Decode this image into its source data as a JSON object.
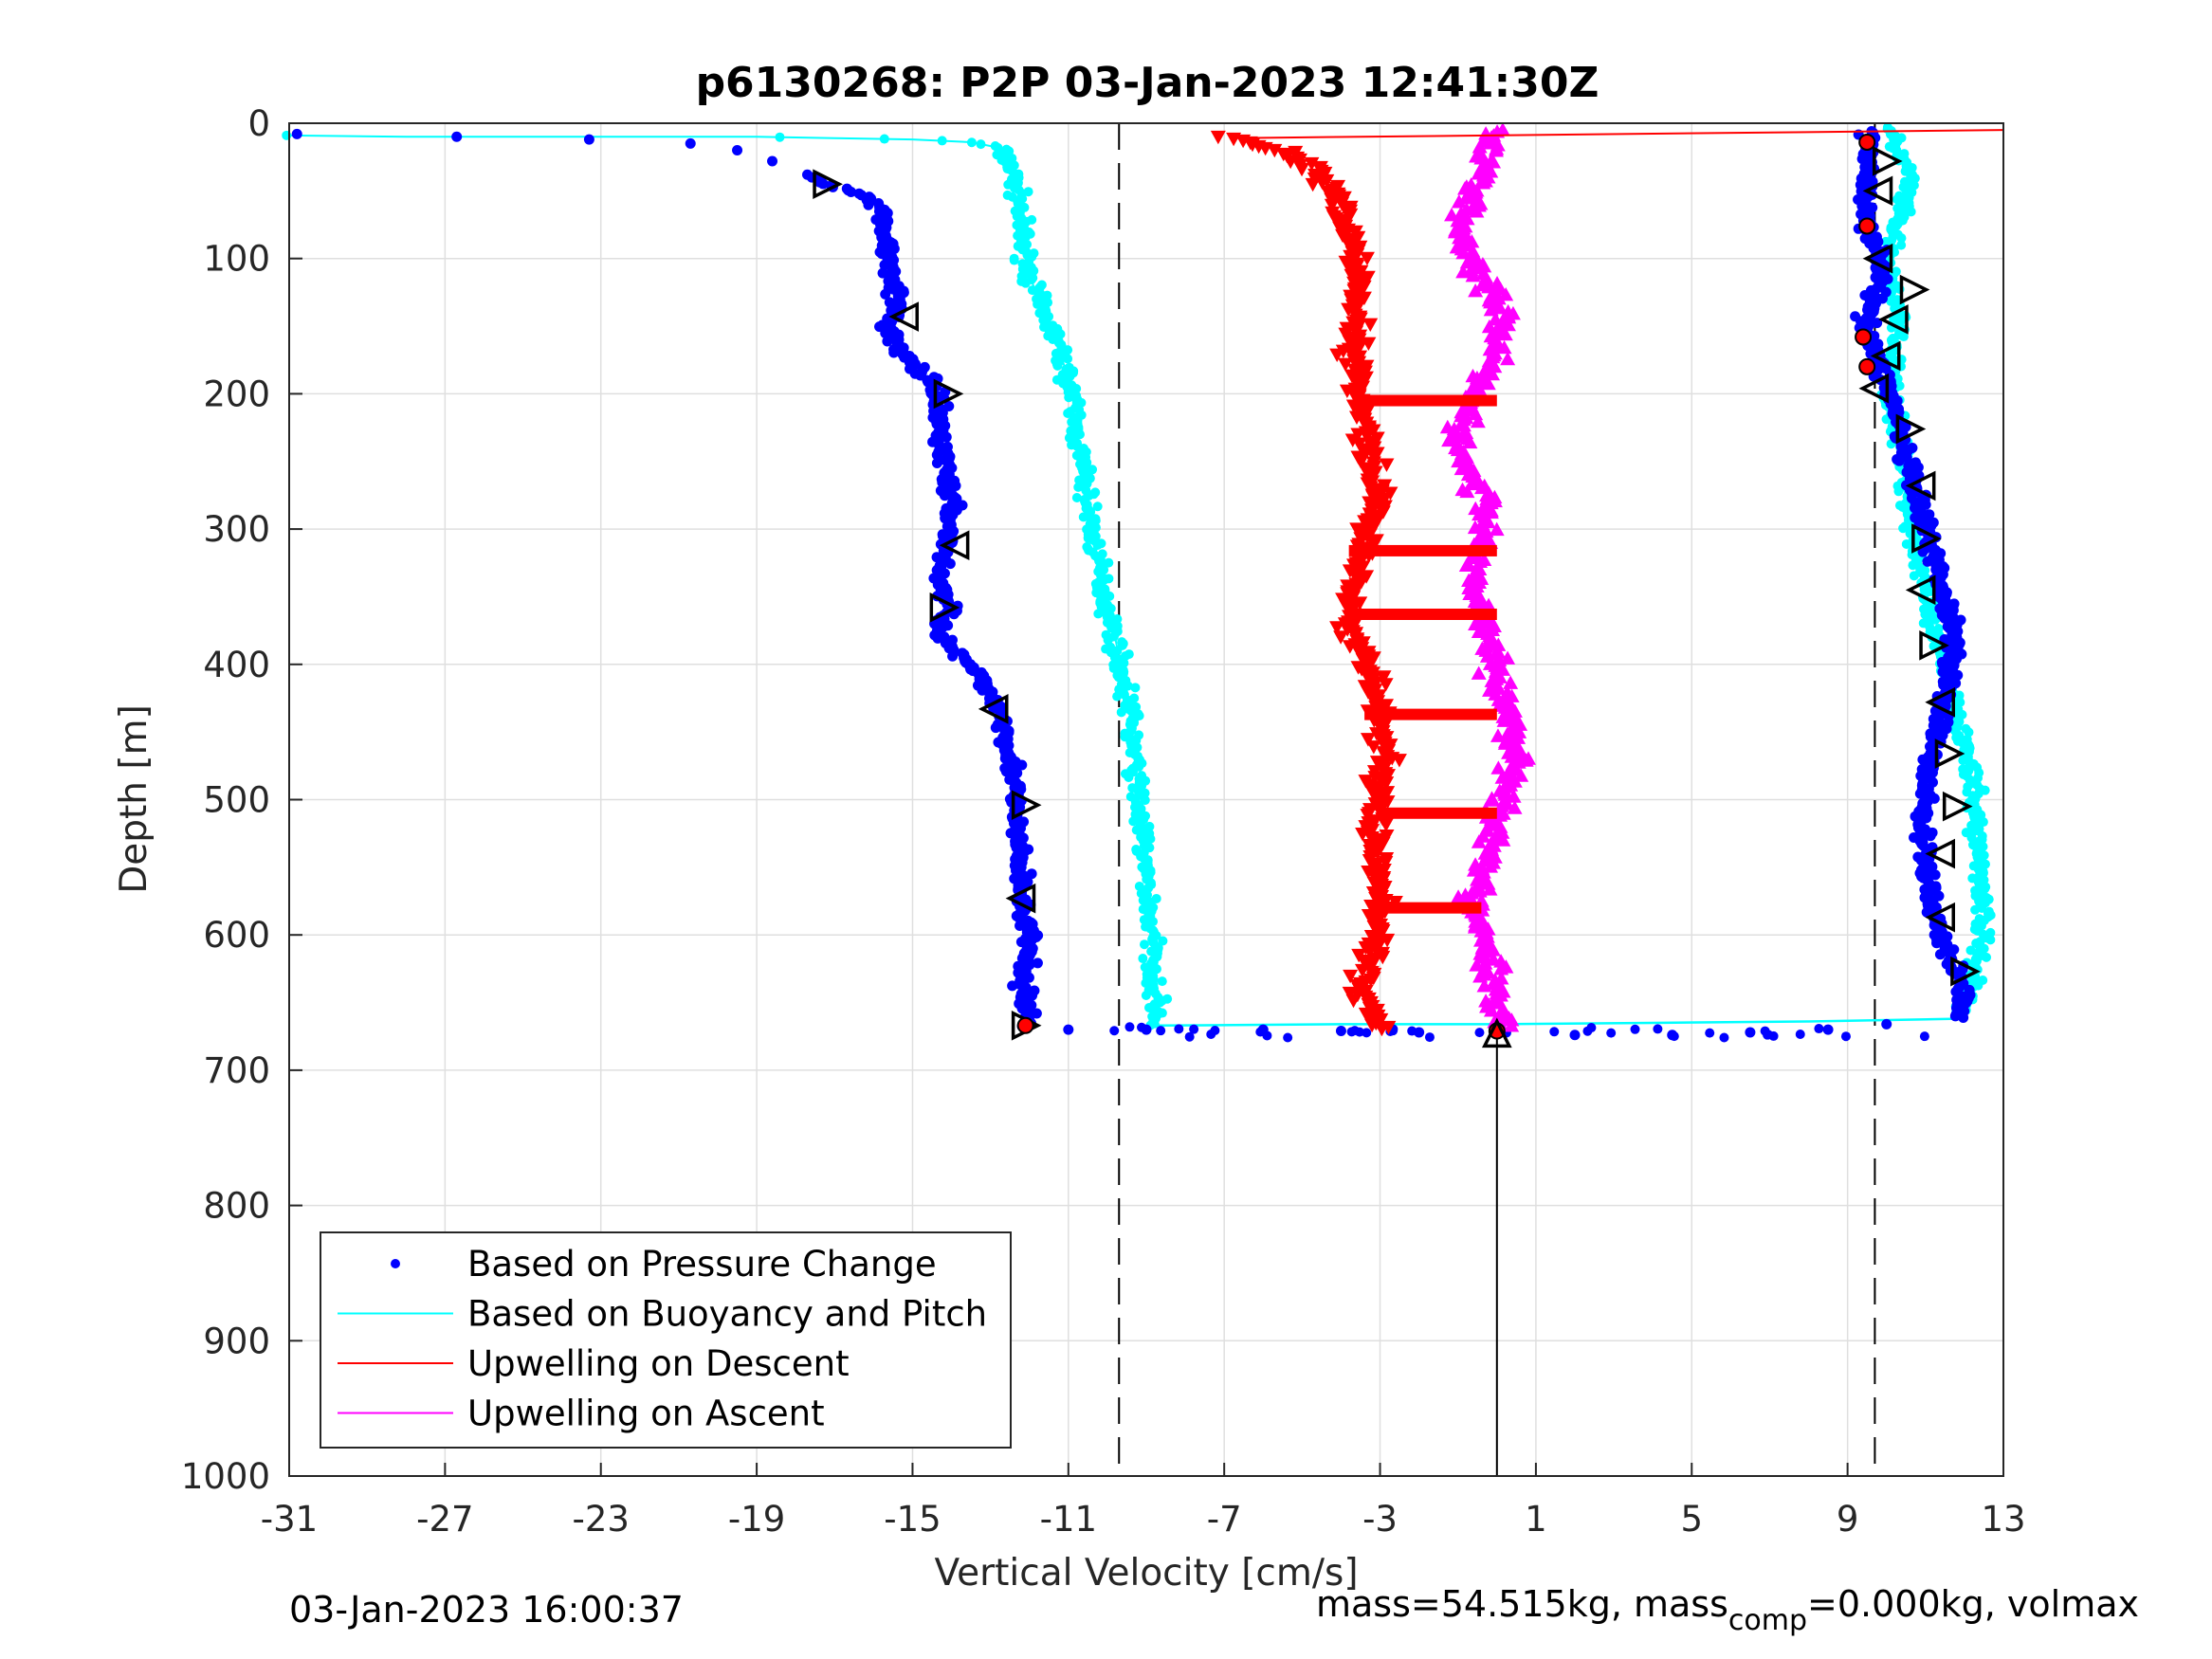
{
  "chart_data": {
    "type": "scatter",
    "title": "p6130268: P2P 03-Jan-2023 12:41:30Z",
    "xlabel": "Vertical Velocity [cm/s]",
    "ylabel": "Depth [m]",
    "xlim": [
      -31,
      13
    ],
    "ylim": [
      0,
      1000
    ],
    "y_reversed": true,
    "grid": true,
    "legend_position": "bottom-left",
    "xticks": [
      -31,
      -27,
      -23,
      -19,
      -15,
      -11,
      -7,
      -3,
      1,
      5,
      9,
      13
    ],
    "yticks": [
      0,
      100,
      200,
      300,
      400,
      500,
      600,
      700,
      800,
      900,
      1000
    ],
    "xtick_labels": [
      "-31",
      "-27",
      "-23",
      "-19",
      "-15",
      "-11",
      "-7",
      "-3",
      "1",
      "5",
      "9",
      "13"
    ],
    "ytick_labels": [
      "0",
      "100",
      "200",
      "300",
      "400",
      "500",
      "600",
      "700",
      "800",
      "900",
      "1000"
    ],
    "reference_lines": {
      "dashed_x": [
        -9.7,
        9.7
      ],
      "solid_x": 0
    },
    "series": [
      {
        "name": "Based on Pressure Change",
        "color": "#0000ff",
        "marker": "dot",
        "descent": {
          "x": [
            -30.8,
            -26.7,
            -23.3,
            -20.7,
            -19.5,
            -18.6,
            -17.7,
            -17.2,
            -16.4,
            -15.9,
            -15.7,
            -15.6,
            -15.4,
            -15.5,
            -15.6,
            -15.5,
            -15.3,
            -14.7,
            -14.4,
            -14.3,
            -14.1,
            -14.0,
            -14.1,
            -14.3,
            -14.2,
            -14.0,
            -14.2,
            -14.3,
            -13.9,
            -13.3,
            -12.8,
            -12.6,
            -12.4,
            -12.4,
            -12.3,
            -12.2,
            -12.2,
            -12.0,
            -12.1,
            -12.2,
            -12.0,
            -12.1
          ],
          "y": [
            8,
            10,
            12,
            15,
            20,
            28,
            38,
            45,
            50,
            60,
            80,
            100,
            120,
            140,
            150,
            160,
            170,
            185,
            200,
            230,
            260,
            290,
            310,
            330,
            350,
            360,
            370,
            380,
            390,
            410,
            430,
            450,
            480,
            500,
            530,
            560,
            580,
            600,
            620,
            640,
            660,
            668
          ]
        },
        "ascent": {
          "x": [
            11.9,
            12.0,
            11.5,
            11.2,
            11.0,
            10.9,
            11.0,
            11.1,
            11.4,
            11.6,
            11.8,
            11.6,
            11.4,
            11.2,
            11.0,
            10.8,
            10.6,
            10.4,
            10.3,
            10.1,
            9.9,
            9.7,
            9.6,
            9.5,
            9.8,
            9.9,
            9.6,
            9.4,
            9.5,
            9.6,
            9.5
          ],
          "y": [
            662,
            640,
            610,
            580,
            550,
            520,
            500,
            470,
            440,
            410,
            380,
            360,
            340,
            320,
            300,
            280,
            260,
            240,
            220,
            200,
            185,
            170,
            160,
            140,
            120,
            100,
            80,
            60,
            40,
            20,
            6
          ]
        },
        "turnaround": {
          "x": [
            -11.0,
            -9.0,
            -6.0,
            -4.0,
            -2.0,
            0.0,
            2.0,
            4.5,
            6.5,
            8.5,
            10.0
          ],
          "y": [
            670,
            670,
            670,
            671,
            672,
            673,
            674,
            674,
            672,
            670,
            666
          ]
        }
      },
      {
        "name": "Based on Buoyancy and Pitch",
        "color": "#00ffff",
        "marker": "line",
        "descent": {
          "x": [
            -31.0,
            -28.0,
            -25.0,
            -22.0,
            -19.0,
            -17.0,
            -15.0,
            -13.5,
            -12.8,
            -12.5,
            -12.3,
            -12.2,
            -12.1,
            -11.8,
            -11.3,
            -10.9,
            -10.8,
            -10.6,
            -10.4,
            -10.2,
            -10.0,
            -9.8,
            -9.6,
            -9.4,
            -9.3,
            -9.2,
            -9.1,
            -9.0,
            -8.9,
            -8.8,
            -8.8,
            -8.7,
            -8.8
          ],
          "y": [
            9,
            10,
            10,
            10,
            10,
            11,
            12,
            14,
            18,
            30,
            50,
            80,
            100,
            130,
            160,
            200,
            230,
            260,
            300,
            330,
            360,
            380,
            410,
            440,
            470,
            500,
            530,
            560,
            590,
            620,
            640,
            660,
            667
          ]
        },
        "ascent": {
          "x": [
            11.8,
            12.2,
            12.4,
            12.5,
            12.4,
            12.3,
            12.2,
            12.0,
            11.8,
            11.5,
            11.2,
            11.0,
            10.8,
            10.6,
            10.5,
            10.3,
            10.1,
            10.2,
            10.3,
            10.1,
            10.0,
            10.2,
            10.4,
            10.6,
            10.3,
            10.0
          ],
          "y": [
            660,
            640,
            610,
            580,
            550,
            520,
            490,
            460,
            430,
            400,
            380,
            350,
            320,
            290,
            260,
            230,
            200,
            170,
            140,
            120,
            100,
            80,
            60,
            40,
            20,
            3
          ]
        },
        "turnaround": {
          "x": [
            -8.7,
            -4.0,
            0.0,
            4.0,
            8.0,
            11.8
          ],
          "y": [
            667,
            666,
            666,
            665,
            664,
            662
          ]
        }
      },
      {
        "name": "Upwelling on Descent",
        "color": "#ff0000",
        "marker": "triangle-down",
        "x": [
          -7.0,
          -5.5,
          -4.5,
          -4.0,
          -3.8,
          -3.6,
          -3.5,
          -3.6,
          -3.7,
          -3.5,
          -3.4,
          -3.2,
          -3.0,
          -3.3,
          -3.5,
          -3.6,
          -3.8,
          -3.9,
          -3.4,
          -3.2,
          -3.0,
          -2.9,
          -3.1,
          -3.2,
          -3.0,
          -2.9,
          -3.1,
          -3.3,
          -3.5,
          -3.2,
          -3.0
        ],
        "y": [
          10,
          20,
          40,
          60,
          80,
          100,
          130,
          150,
          170,
          200,
          220,
          250,
          280,
          300,
          320,
          340,
          360,
          370,
          390,
          410,
          440,
          470,
          500,
          530,
          560,
          580,
          600,
          620,
          640,
          655,
          670
        ],
        "bands": [
          {
            "y": 205,
            "x_from": -3.5,
            "x_to": 0.0
          },
          {
            "y": 316,
            "x_from": -3.8,
            "x_to": 0.0
          },
          {
            "y": 363,
            "x_from": -3.9,
            "x_to": 0.0
          },
          {
            "y": 437,
            "x_from": -3.4,
            "x_to": 0.0
          },
          {
            "y": 510,
            "x_from": -3.1,
            "x_to": 0.0
          },
          {
            "y": 580,
            "x_from": -3.2,
            "x_to": -0.4
          }
        ],
        "surface_line": {
          "x_from": -6.8,
          "x_to": 13.0,
          "y_from": 11,
          "y_to": 5
        }
      },
      {
        "name": "Upwelling on Ascent",
        "color": "#ff00ff",
        "marker": "triangle-up",
        "x": [
          0.2,
          0.0,
          -0.1,
          -0.3,
          -0.5,
          -0.6,
          -0.4,
          -0.2,
          0.0,
          0.3,
          0.5,
          0.4,
          0.2,
          0.0,
          -0.1,
          -0.3,
          -0.5,
          -0.6,
          -0.4,
          -0.2,
          -0.5,
          -0.8,
          -1.0,
          -0.5,
          0.0,
          0.2,
          -0.5,
          -1.0,
          -0.6,
          -0.3,
          0.0
        ],
        "y": [
          668,
          650,
          630,
          610,
          590,
          570,
          550,
          530,
          510,
          490,
          470,
          450,
          430,
          410,
          390,
          370,
          350,
          330,
          310,
          290,
          270,
          250,
          230,
          200,
          170,
          140,
          110,
          80,
          50,
          30,
          5
        ]
      }
    ],
    "markers": {
      "descent_triangles": [
        {
          "x": -17.2,
          "y": 45,
          "dir": "right"
        },
        {
          "x": -15.2,
          "y": 143,
          "dir": "left"
        },
        {
          "x": -14.1,
          "y": 200,
          "dir": "right"
        },
        {
          "x": -13.9,
          "y": 312,
          "dir": "left"
        },
        {
          "x": -14.2,
          "y": 358,
          "dir": "right"
        },
        {
          "x": -12.9,
          "y": 433,
          "dir": "left"
        },
        {
          "x": -12.1,
          "y": 504,
          "dir": "right"
        },
        {
          "x": -12.2,
          "y": 573,
          "dir": "left"
        },
        {
          "x": -12.1,
          "y": 667,
          "dir": "right"
        }
      ],
      "ascent_triangles": [
        {
          "x": 10.0,
          "y": 28,
          "dir": "right"
        },
        {
          "x": 9.8,
          "y": 50,
          "dir": "left"
        },
        {
          "x": 9.8,
          "y": 100,
          "dir": "left"
        },
        {
          "x": 10.7,
          "y": 123,
          "dir": "right"
        },
        {
          "x": 10.2,
          "y": 145,
          "dir": "left"
        },
        {
          "x": 10.0,
          "y": 172,
          "dir": "left"
        },
        {
          "x": 9.7,
          "y": 196,
          "dir": "left"
        },
        {
          "x": 10.6,
          "y": 226,
          "dir": "right"
        },
        {
          "x": 10.9,
          "y": 268,
          "dir": "left"
        },
        {
          "x": 11.0,
          "y": 307,
          "dir": "right"
        },
        {
          "x": 10.9,
          "y": 345,
          "dir": "left"
        },
        {
          "x": 11.2,
          "y": 386,
          "dir": "right"
        },
        {
          "x": 11.4,
          "y": 428,
          "dir": "left"
        },
        {
          "x": 11.6,
          "y": 466,
          "dir": "right"
        },
        {
          "x": 11.8,
          "y": 505,
          "dir": "right"
        },
        {
          "x": 11.4,
          "y": 540,
          "dir": "left"
        },
        {
          "x": 11.4,
          "y": 587,
          "dir": "left"
        },
        {
          "x": 12.0,
          "y": 627,
          "dir": "right"
        }
      ],
      "red_points": [
        {
          "x": 9.5,
          "y": 14
        },
        {
          "x": 9.5,
          "y": 76
        },
        {
          "x": 9.4,
          "y": 158
        },
        {
          "x": 9.5,
          "y": 180
        },
        {
          "x": -12.1,
          "y": 667
        },
        {
          "x": 0.0,
          "y": 671
        }
      ],
      "bottom_triangle": {
        "x": 0.0,
        "y": 673
      }
    }
  },
  "footer": {
    "timestamp": "03-Jan-2023 16:00:37",
    "mass_text_1": "mass=54.515kg, mass",
    "mass_sub": "comp",
    "mass_text_2": "=0.000kg, volmax"
  }
}
